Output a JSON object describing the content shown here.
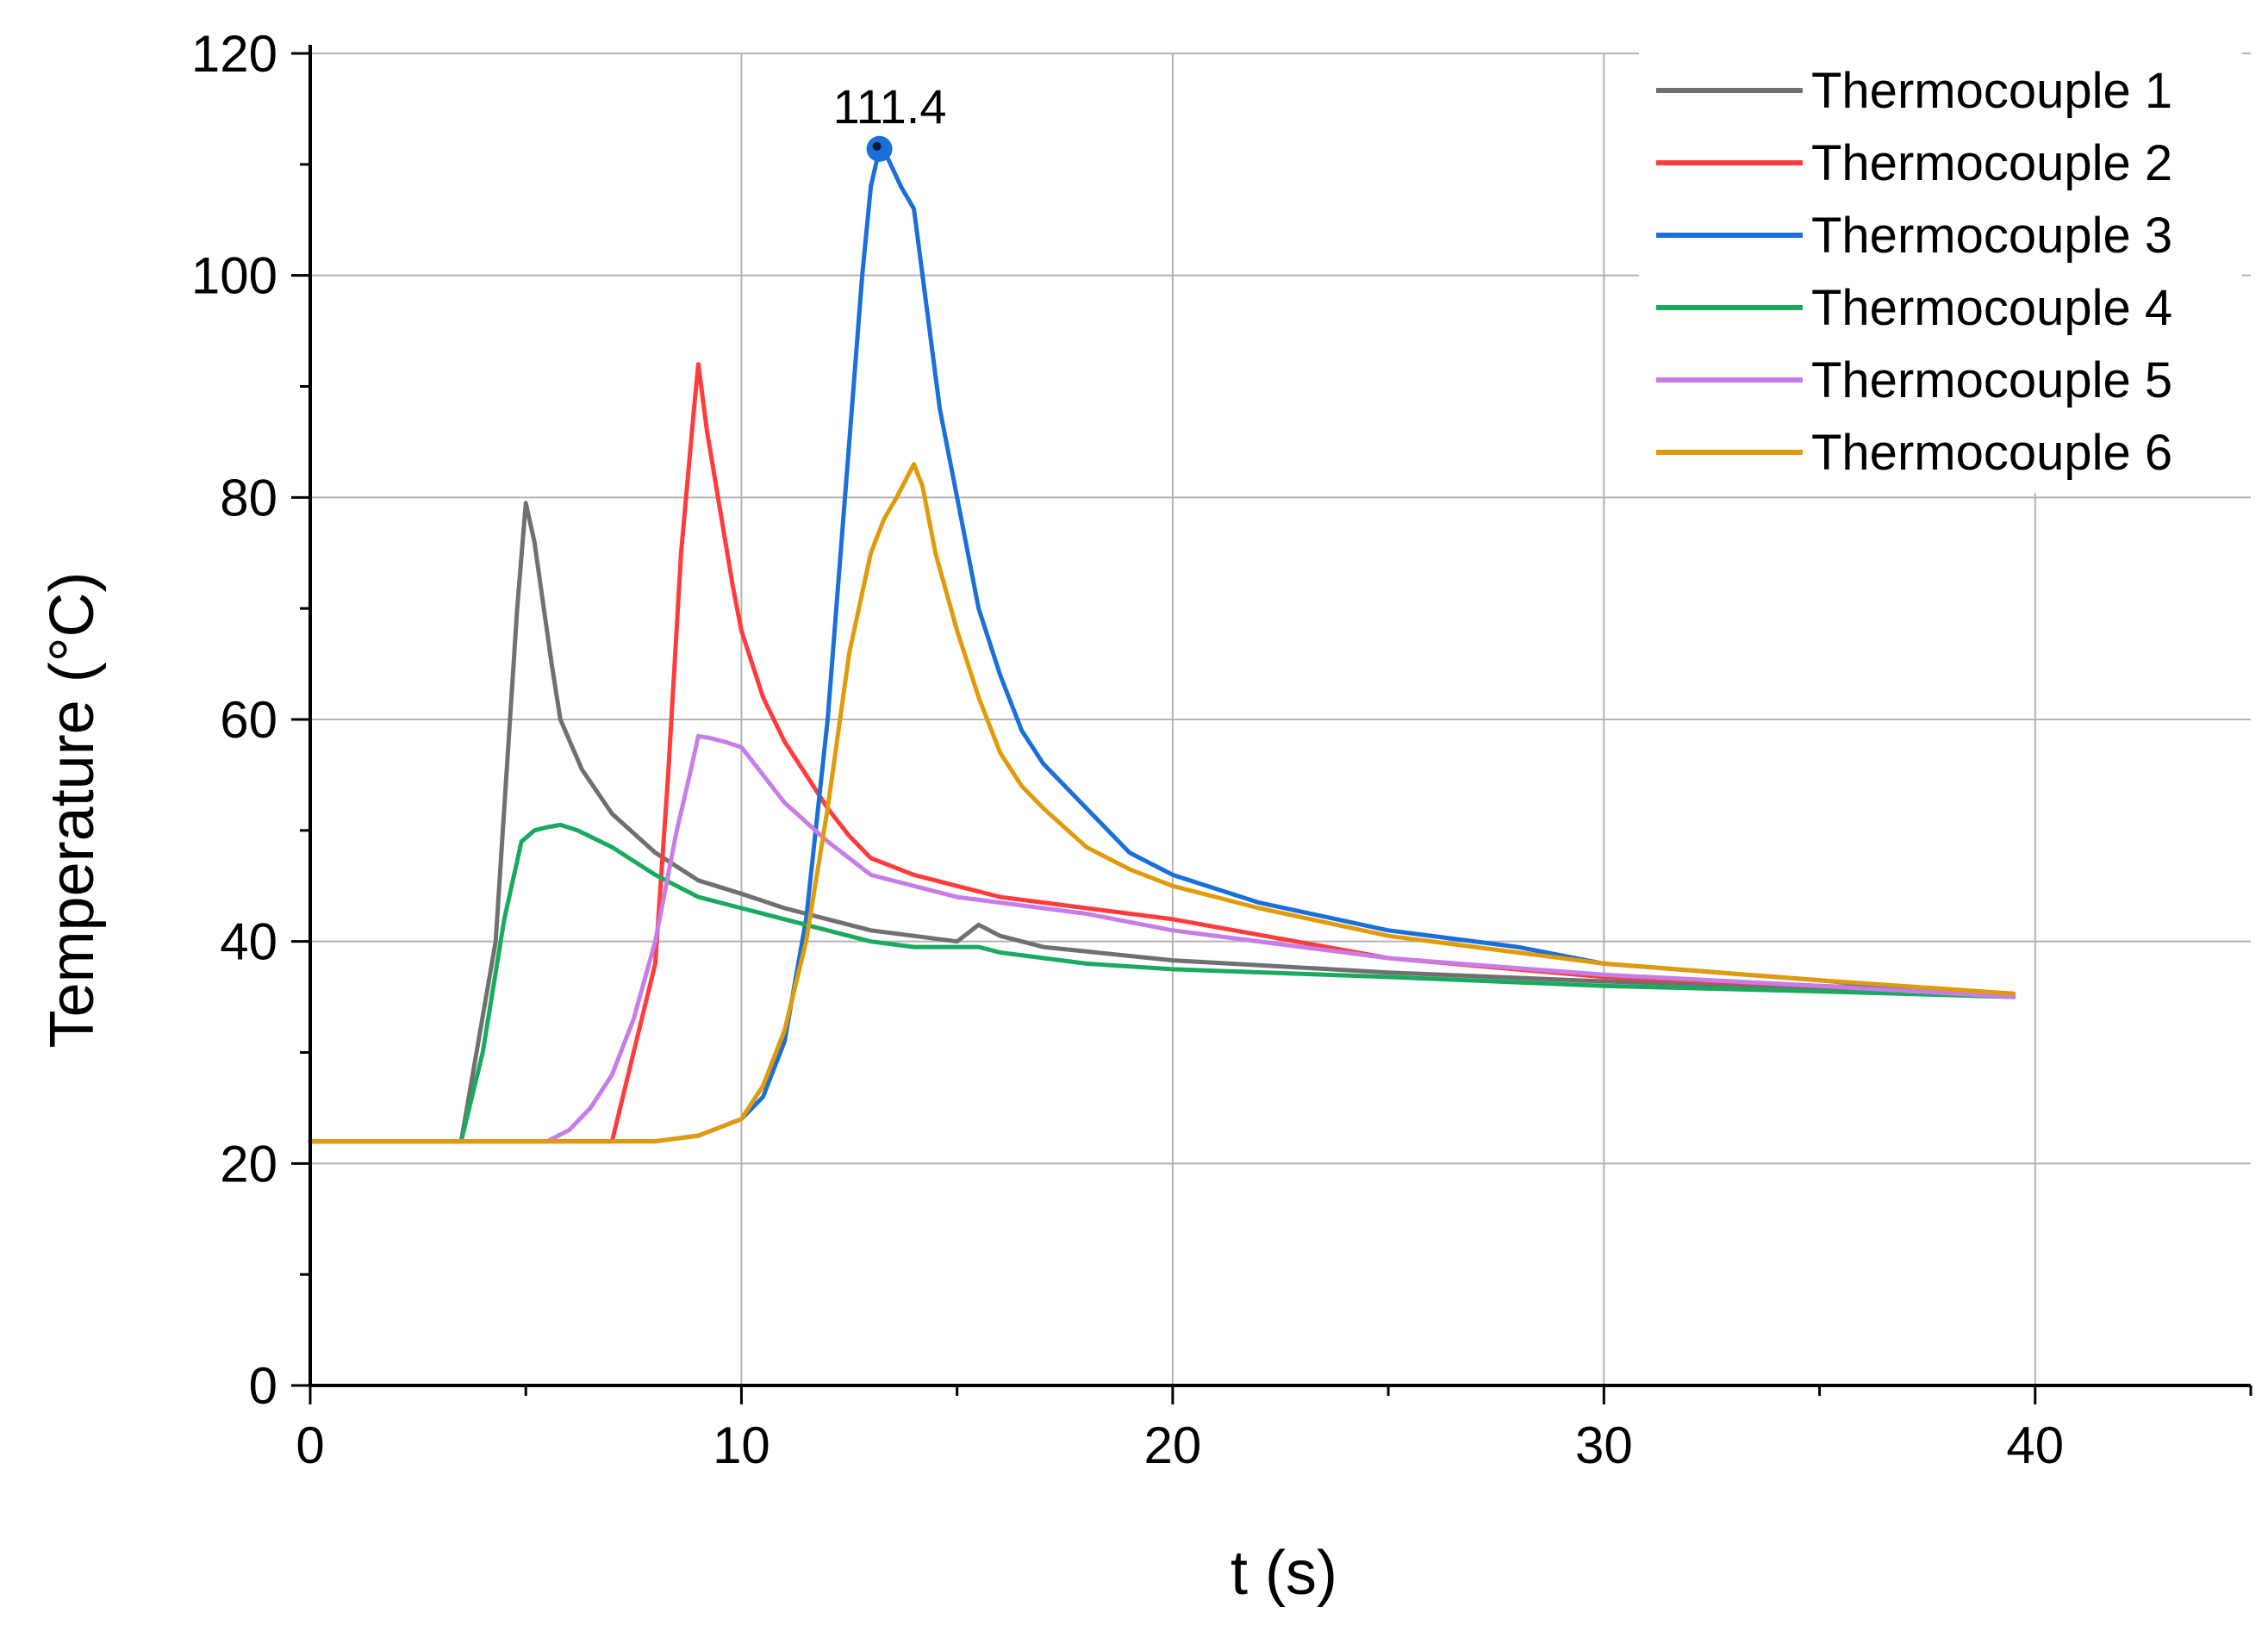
{
  "chart_data": {
    "type": "line",
    "title": "",
    "xlabel": "t (s)",
    "ylabel": "Temperature (°C)",
    "xlim": [
      0,
      45
    ],
    "ylim": [
      0,
      120
    ],
    "xticks": [
      0,
      10,
      20,
      30,
      40
    ],
    "yticks": [
      0,
      20,
      40,
      60,
      80,
      100,
      120
    ],
    "grid": true,
    "legend_position": "top-right",
    "colors": {
      "Thermocouple 1": "#707070",
      "Thermocouple 2": "#ff3b3b",
      "Thermocouple 3": "#1a6fdb",
      "Thermocouple 4": "#1aaa5e",
      "Thermocouple 5": "#c77de8",
      "Thermocouple 6": "#e09b0a"
    },
    "series": [
      {
        "name": "Thermocouple 1",
        "x": [
          0,
          3.5,
          4.3,
          4.8,
          5.0,
          5.2,
          5.6,
          5.8,
          6.3,
          7.0,
          8.0,
          9.0,
          10.0,
          11.0,
          12.0,
          13.0,
          14.0,
          15.0,
          15.5,
          16.0,
          17.0,
          20.0,
          25.0,
          30.0,
          35.0,
          39.5
        ],
        "y": [
          22,
          22,
          40,
          70,
          79.5,
          76,
          65,
          60,
          55.5,
          51.5,
          48,
          45.5,
          44.3,
          43,
          42,
          41,
          40.5,
          40,
          41.5,
          40.5,
          39.5,
          38.3,
          37.2,
          36.4,
          35.8,
          35
        ]
      },
      {
        "name": "Thermocouple 2",
        "x": [
          0,
          7.0,
          7.5,
          8.0,
          8.3,
          8.6,
          8.9,
          9.0,
          9.2,
          9.5,
          9.8,
          10.0,
          10.5,
          11.0,
          11.5,
          12.0,
          12.5,
          13.0,
          14.0,
          15.0,
          16.0,
          18.0,
          20.0,
          25.0,
          30.0,
          35.0,
          39.5
        ],
        "y": [
          22,
          22,
          30,
          38,
          55,
          75,
          88,
          92,
          86,
          79,
          72,
          68,
          62,
          58,
          55,
          52,
          49.5,
          47.5,
          46,
          45,
          44,
          43,
          42,
          38.5,
          36.8,
          36,
          35.3
        ]
      },
      {
        "name": "Thermocouple 3",
        "x": [
          0,
          8.0,
          9.0,
          10.0,
          10.5,
          11.0,
          11.5,
          12.0,
          12.5,
          12.8,
          13.0,
          13.2,
          13.4,
          13.7,
          14.0,
          14.3,
          14.6,
          15.0,
          15.5,
          16.0,
          16.5,
          17.0,
          18.0,
          19.0,
          20.0,
          22.0,
          25.0,
          28.0,
          30.0,
          35.0,
          39.5
        ],
        "y": [
          22,
          22,
          22.5,
          24,
          26,
          31,
          42,
          60,
          85,
          100,
          108,
          111.4,
          110.5,
          108,
          106,
          97,
          88,
          80,
          70,
          64,
          59,
          56,
          52,
          48,
          46,
          43.5,
          41,
          39.5,
          38,
          36.5,
          35
        ]
      },
      {
        "name": "Thermocouple 4",
        "x": [
          0,
          3.5,
          4.0,
          4.5,
          4.9,
          5.2,
          5.5,
          5.8,
          6.2,
          7.0,
          8.0,
          9.0,
          10.0,
          11.0,
          12.0,
          13.0,
          14.0,
          15.0,
          15.5,
          16.0,
          18.0,
          20.0,
          25.0,
          30.0,
          35.0,
          39.5
        ],
        "y": [
          22,
          22,
          30,
          42,
          49,
          50,
          50.3,
          50.5,
          50,
          48.5,
          46,
          44,
          43,
          42,
          41,
          40,
          39.5,
          39.5,
          39.5,
          39,
          38,
          37.5,
          36.8,
          36,
          35.5,
          35
        ]
      },
      {
        "name": "Thermocouple 5",
        "x": [
          0,
          5.5,
          6.0,
          6.5,
          7.0,
          7.5,
          8.0,
          8.5,
          8.8,
          9.0,
          9.3,
          9.6,
          10.0,
          10.5,
          11.0,
          12.0,
          13.0,
          14.0,
          15.0,
          16.0,
          18.0,
          20.0,
          25.0,
          30.0,
          35.0,
          39.5
        ],
        "y": [
          22,
          22,
          23,
          25,
          28,
          33,
          40,
          50,
          55,
          58.5,
          58.3,
          58,
          57.5,
          55,
          52.5,
          49,
          46,
          45,
          44,
          43.5,
          42.5,
          41,
          38.5,
          37,
          36,
          35
        ]
      },
      {
        "name": "Thermocouple 6",
        "x": [
          0,
          8.0,
          9.0,
          10.0,
          10.5,
          11.0,
          11.5,
          12.0,
          12.5,
          13.0,
          13.3,
          13.6,
          14.0,
          14.2,
          14.5,
          15.0,
          15.5,
          16.0,
          16.5,
          17.0,
          18.0,
          19.0,
          20.0,
          22.0,
          25.0,
          28.0,
          30.0,
          35.0,
          39.5
        ],
        "y": [
          22,
          22,
          22.5,
          24,
          27,
          32,
          40,
          52,
          66,
          75,
          78,
          80,
          83,
          81,
          75,
          68,
          62,
          57,
          54,
          52,
          48.5,
          46.5,
          45,
          43,
          40.5,
          39,
          38,
          36.5,
          35.3
        ]
      }
    ],
    "annotations": [
      {
        "series": "Thermocouple 3",
        "x": 13.2,
        "y": 111.4,
        "label": "111.4"
      }
    ]
  }
}
